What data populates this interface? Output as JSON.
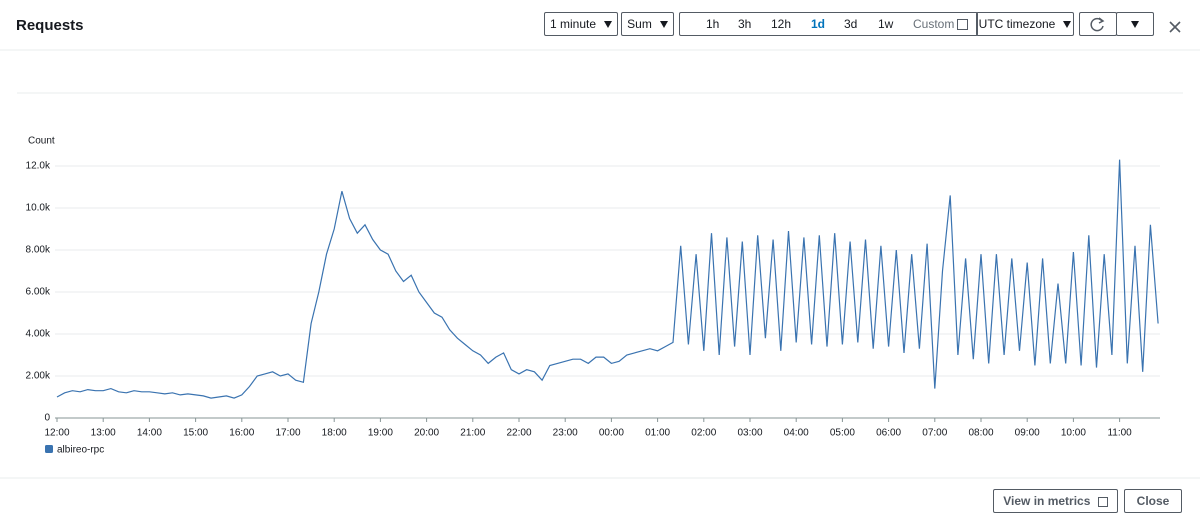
{
  "header": {
    "title": "Requests",
    "period": "1 minute",
    "statistic": "Sum",
    "ranges": [
      "1h",
      "3h",
      "12h",
      "1d",
      "3d",
      "1w"
    ],
    "selected_range": 3,
    "custom": "Custom",
    "timezone": "UTC timezone"
  },
  "footer": {
    "view": "View in metrics",
    "close": "Close"
  },
  "chart_data": {
    "type": "line",
    "ylabel": "Count",
    "x": [
      "12:00",
      "12:10",
      "12:20",
      "12:30",
      "12:40",
      "12:50",
      "13:00",
      "13:10",
      "13:20",
      "13:30",
      "13:40",
      "13:50",
      "14:00",
      "14:10",
      "14:20",
      "14:30",
      "14:40",
      "14:50",
      "15:00",
      "15:10",
      "15:20",
      "15:30",
      "15:40",
      "15:50",
      "16:00",
      "16:10",
      "16:20",
      "16:30",
      "16:40",
      "16:50",
      "17:00",
      "17:10",
      "17:20",
      "17:30",
      "17:40",
      "17:50",
      "18:00",
      "18:10",
      "18:20",
      "18:30",
      "18:40",
      "18:50",
      "19:00",
      "19:10",
      "19:20",
      "19:30",
      "19:40",
      "19:50",
      "20:00",
      "20:10",
      "20:20",
      "20:30",
      "20:40",
      "20:50",
      "21:00",
      "21:10",
      "21:20",
      "21:30",
      "21:40",
      "21:50",
      "22:00",
      "22:10",
      "22:20",
      "22:30",
      "22:40",
      "22:50",
      "23:00",
      "23:10",
      "23:20",
      "23:30",
      "23:40",
      "23:50",
      "00:00",
      "00:10",
      "00:20",
      "00:30",
      "00:40",
      "00:50",
      "01:00",
      "01:10",
      "01:20",
      "01:30",
      "01:40",
      "01:50",
      "02:00",
      "02:10",
      "02:20",
      "02:30",
      "02:40",
      "02:50",
      "03:00",
      "03:10",
      "03:20",
      "03:30",
      "03:40",
      "03:50",
      "04:00",
      "04:10",
      "04:20",
      "04:30",
      "04:40",
      "04:50",
      "05:00",
      "05:10",
      "05:20",
      "05:30",
      "05:40",
      "05:50",
      "06:00",
      "06:10",
      "06:20",
      "06:30",
      "06:40",
      "06:50",
      "07:00",
      "07:10",
      "07:20",
      "07:30",
      "07:40",
      "07:50",
      "08:00",
      "08:10",
      "08:20",
      "08:30",
      "08:40",
      "08:50",
      "09:00",
      "09:10",
      "09:20",
      "09:30",
      "09:40",
      "09:50",
      "10:00",
      "10:10",
      "10:20",
      "10:30",
      "10:40",
      "10:50",
      "11:00",
      "11:10",
      "11:20",
      "11:30",
      "11:40",
      "11:50"
    ],
    "series": [
      {
        "name": "albireo-rpc",
        "color": "#3a73b0",
        "values": [
          1000,
          1200,
          1300,
          1250,
          1350,
          1300,
          1300,
          1400,
          1250,
          1200,
          1300,
          1250,
          1250,
          1200,
          1150,
          1200,
          1100,
          1150,
          1100,
          1050,
          950,
          1000,
          1050,
          950,
          1100,
          1500,
          2000,
          2100,
          2200,
          2000,
          2100,
          1800,
          1700,
          4500,
          6000,
          7800,
          9000,
          10800,
          9500,
          8800,
          9200,
          8500,
          8000,
          7800,
          7000,
          6500,
          6800,
          6000,
          5500,
          5000,
          4800,
          4200,
          3800,
          3500,
          3200,
          3000,
          2600,
          2900,
          3100,
          2300,
          2100,
          2300,
          2200,
          1800,
          2500,
          2600,
          2700,
          2800,
          2800,
          2600,
          2900,
          2900,
          2600,
          2700,
          3000,
          3100,
          3200,
          3300,
          3200,
          3400,
          3600,
          8200,
          3500,
          7800,
          3200,
          8800,
          3000,
          8600,
          3400,
          8400,
          3000,
          8700,
          3800,
          8500,
          3200,
          8900,
          3600,
          8600,
          3500,
          8700,
          3400,
          8800,
          3500,
          8400,
          3600,
          8500,
          3300,
          8200,
          3400,
          8000,
          3100,
          7800,
          3300,
          8300,
          1400,
          7000,
          10600,
          3000,
          7600,
          2800,
          7800,
          2600,
          7800,
          3000,
          7600,
          3200,
          7400,
          2500,
          7600,
          2600,
          6400,
          2600,
          7900,
          2500,
          8700,
          2400,
          7800,
          3000,
          12300,
          2600,
          8200,
          2200,
          9200,
          4500
        ]
      }
    ],
    "ylim": [
      0,
      12700
    ],
    "yticks": [
      0,
      {
        "value": 2000,
        "label": "2.00k"
      },
      {
        "value": 4000,
        "label": "4.00k"
      },
      {
        "value": 6000,
        "label": "6.00k"
      },
      {
        "value": 8000,
        "label": "8.00k"
      },
      {
        "value": 10000,
        "label": "10.0k"
      },
      {
        "value": 12000,
        "label": "12.0k"
      }
    ],
    "xticks": [
      "12:00",
      "13:00",
      "14:00",
      "15:00",
      "16:00",
      "17:00",
      "18:00",
      "19:00",
      "20:00",
      "21:00",
      "22:00",
      "23:00",
      "00:00",
      "01:00",
      "02:00",
      "03:00",
      "04:00",
      "05:00",
      "06:00",
      "07:00",
      "08:00",
      "09:00",
      "10:00",
      "11:00"
    ],
    "grid": true
  }
}
